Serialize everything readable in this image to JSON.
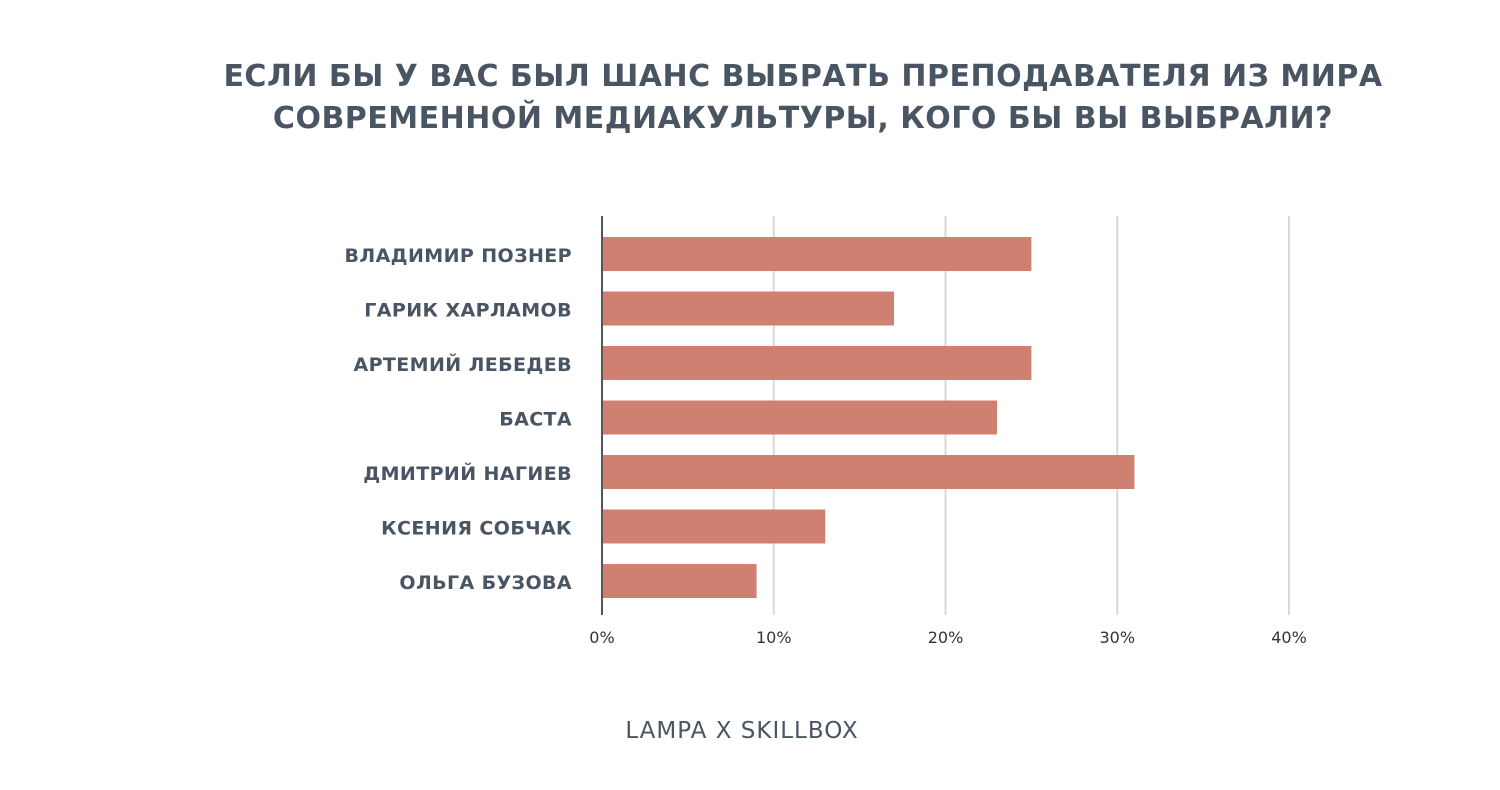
{
  "title": {
    "line1": "ЕСЛИ БЫ У ВАС БЫЛ ШАНС ВЫБРАТЬ ПРЕПОДАВАТЕЛЯ ИЗ МИРА",
    "line2": "СОВРЕМЕННОЙ МЕДИАКУЛЬТУРЫ, КОГО БЫ ВЫ ВЫБРАЛИ?"
  },
  "footer": {
    "brand": "LAMPA X SKILLBOX"
  },
  "colors": {
    "bar": "#d08070",
    "grid": "#d9d9d9",
    "axis": "#555555",
    "label": "#4a5563",
    "tick": "#333333"
  },
  "chart_data": {
    "type": "bar",
    "orientation": "horizontal",
    "categories": [
      "ВЛАДИМИР ПОЗНЕР",
      "ГАРИК ХАРЛАМОВ",
      "АРТЕМИЙ ЛЕБЕДЕВ",
      "БАСТА",
      "ДМИТРИЙ НАГИЕВ",
      "КСЕНИЯ СОБЧАК",
      "ОЛЬГА БУЗОВА"
    ],
    "values": [
      25,
      17,
      25,
      23,
      31,
      13,
      9
    ],
    "unit": "%",
    "xlim": [
      0,
      40
    ],
    "xticks": [
      0,
      10,
      20,
      30,
      40
    ],
    "xtick_labels": [
      "0%",
      "10%",
      "20%",
      "30%",
      "40%"
    ],
    "grid": true,
    "legend": false
  }
}
